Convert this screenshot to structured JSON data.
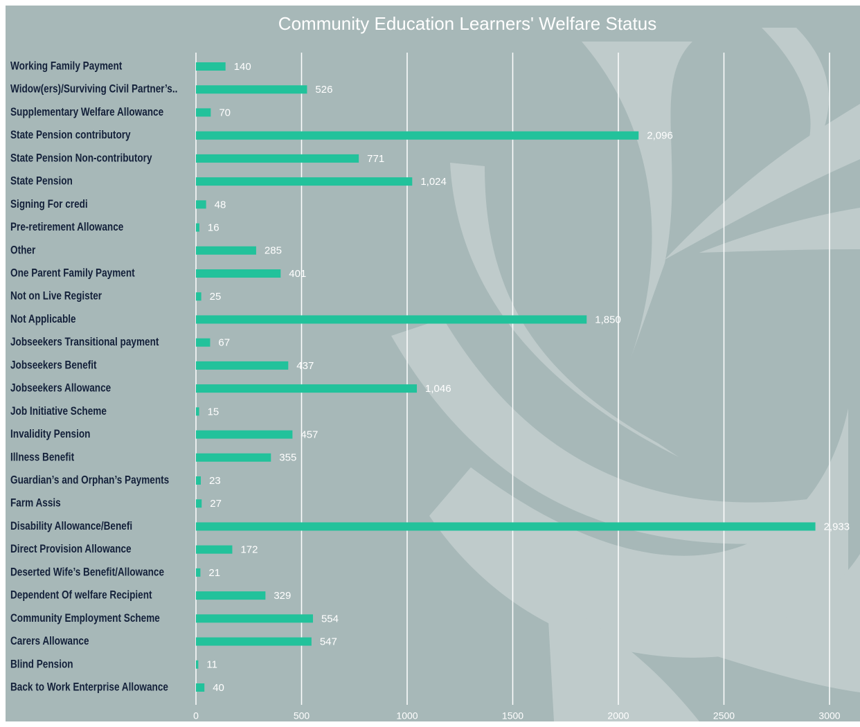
{
  "chart_data": {
    "type": "bar",
    "orientation": "horizontal",
    "title": "Community Education Learners' Welfare Status",
    "categories": [
      "Working Family Payment",
      "Widow(ers)/Surviving Civil Partner’s..",
      "Supplementary Welfare Allowance",
      "State Pension contributory",
      "State Pension Non-contributory",
      "State Pension",
      "Signing For credi",
      "Pre-retirement Allowance",
      "Other",
      "One Parent Family Payment",
      "Not on Live Register",
      "Not Applicable",
      "Jobseekers Transitional payment",
      "Jobseekers Benefit",
      "Jobseekers Allowance",
      "Job Initiative Scheme",
      "Invalidity Pension",
      "Illness Benefit",
      "Guardian’s and Orphan’s Payments",
      "Farm Assis",
      "Disability Allowance/Benefi",
      "Direct Provision Allowance",
      "Deserted Wife’s Benefit/Allowance",
      "Dependent Of welfare Recipient",
      "Community Employment Scheme",
      "Carers Allowance",
      "Blind Pension",
      "Back to Work Enterprise Allowance"
    ],
    "values": [
      140,
      526,
      70,
      2096,
      771,
      1024,
      48,
      16,
      285,
      401,
      25,
      1850,
      67,
      437,
      1046,
      15,
      457,
      355,
      23,
      27,
      2933,
      172,
      21,
      329,
      554,
      547,
      11,
      40
    ],
    "value_labels": [
      "140",
      "526",
      "70",
      "2,096",
      "771",
      "1,024",
      "48",
      "16",
      "285",
      "401",
      "25",
      "1,850",
      "67",
      "437",
      "1,046",
      "15",
      "457",
      "355",
      "23",
      "27",
      "2,933",
      "172",
      "21",
      "329",
      "554",
      "547",
      "11",
      "40"
    ],
    "color": "#22c29b",
    "xlim": [
      0,
      3000
    ],
    "xticks": [
      0,
      500,
      1000,
      1500,
      2000,
      2500,
      3000
    ],
    "grid": true
  }
}
